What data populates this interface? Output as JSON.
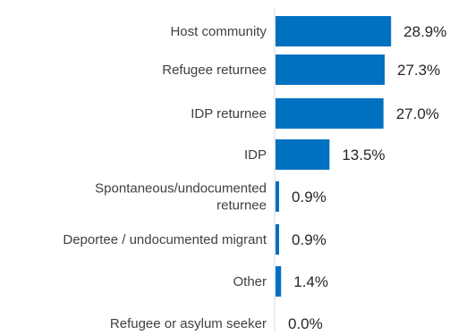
{
  "chart_data": {
    "type": "bar",
    "orientation": "horizontal",
    "title": "",
    "xlabel": "",
    "ylabel": "",
    "categories": [
      [
        "Host community"
      ],
      [
        "Refugee returnee"
      ],
      [
        "IDP returnee"
      ],
      [
        "IDP"
      ],
      [
        "Spontaneous/undocumented",
        "returnee"
      ],
      [
        "Deportee / undocumented migrant"
      ],
      [
        "Other"
      ],
      [
        "Refugee or asylum seeker"
      ]
    ],
    "values": [
      28.9,
      27.3,
      27.0,
      13.5,
      0.9,
      0.9,
      1.4,
      0.0
    ],
    "value_labels": [
      "28.9%",
      "27.3%",
      "27.0%",
      "13.5%",
      "0.9%",
      "0.9%",
      "1.4%",
      "0.0%"
    ],
    "xlim": [
      0,
      40
    ],
    "bar_color": "#0070c0",
    "grid": false,
    "legend": "none"
  }
}
